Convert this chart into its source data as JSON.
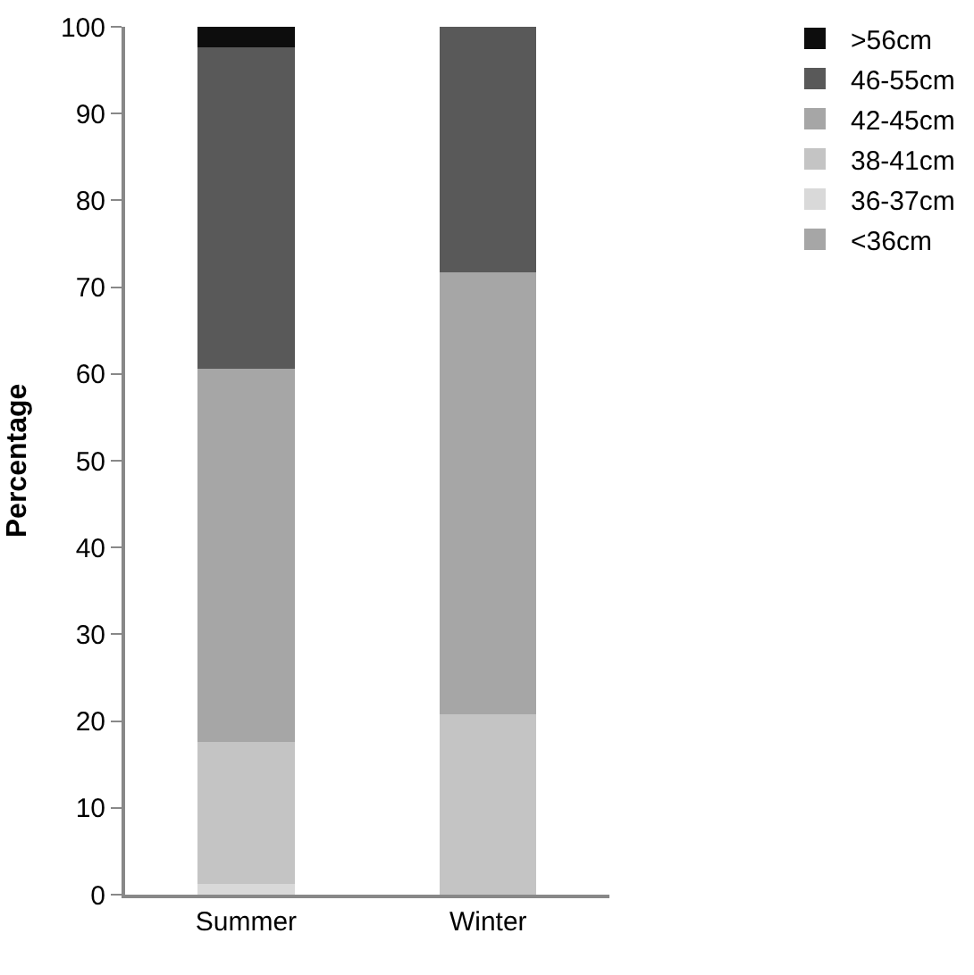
{
  "chart_data": {
    "type": "bar",
    "stacked": true,
    "ylabel": "Percentage",
    "categories": [
      "Summer",
      "Winter"
    ],
    "series": [
      {
        "name": "<36cm",
        "color": "#a6a6a6",
        "values": [
          0,
          0
        ]
      },
      {
        "name": "36-37cm",
        "color": "#d9d9d9",
        "values": [
          1.2,
          0
        ]
      },
      {
        "name": "38-41cm",
        "color": "#c4c4c4",
        "values": [
          16.4,
          20.8
        ]
      },
      {
        "name": "42-45cm",
        "color": "#a6a6a6",
        "values": [
          43.0,
          50.9
        ]
      },
      {
        "name": "46-55cm",
        "color": "#595959",
        "values": [
          37.0,
          28.3
        ]
      },
      {
        "name": ">56cm",
        "color": "#0d0d0d",
        "values": [
          2.4,
          0
        ]
      }
    ],
    "ylim": [
      0,
      100
    ],
    "yticks": [
      0,
      10,
      20,
      30,
      40,
      50,
      60,
      70,
      80,
      90,
      100
    ],
    "grid": false,
    "legend": "right"
  }
}
